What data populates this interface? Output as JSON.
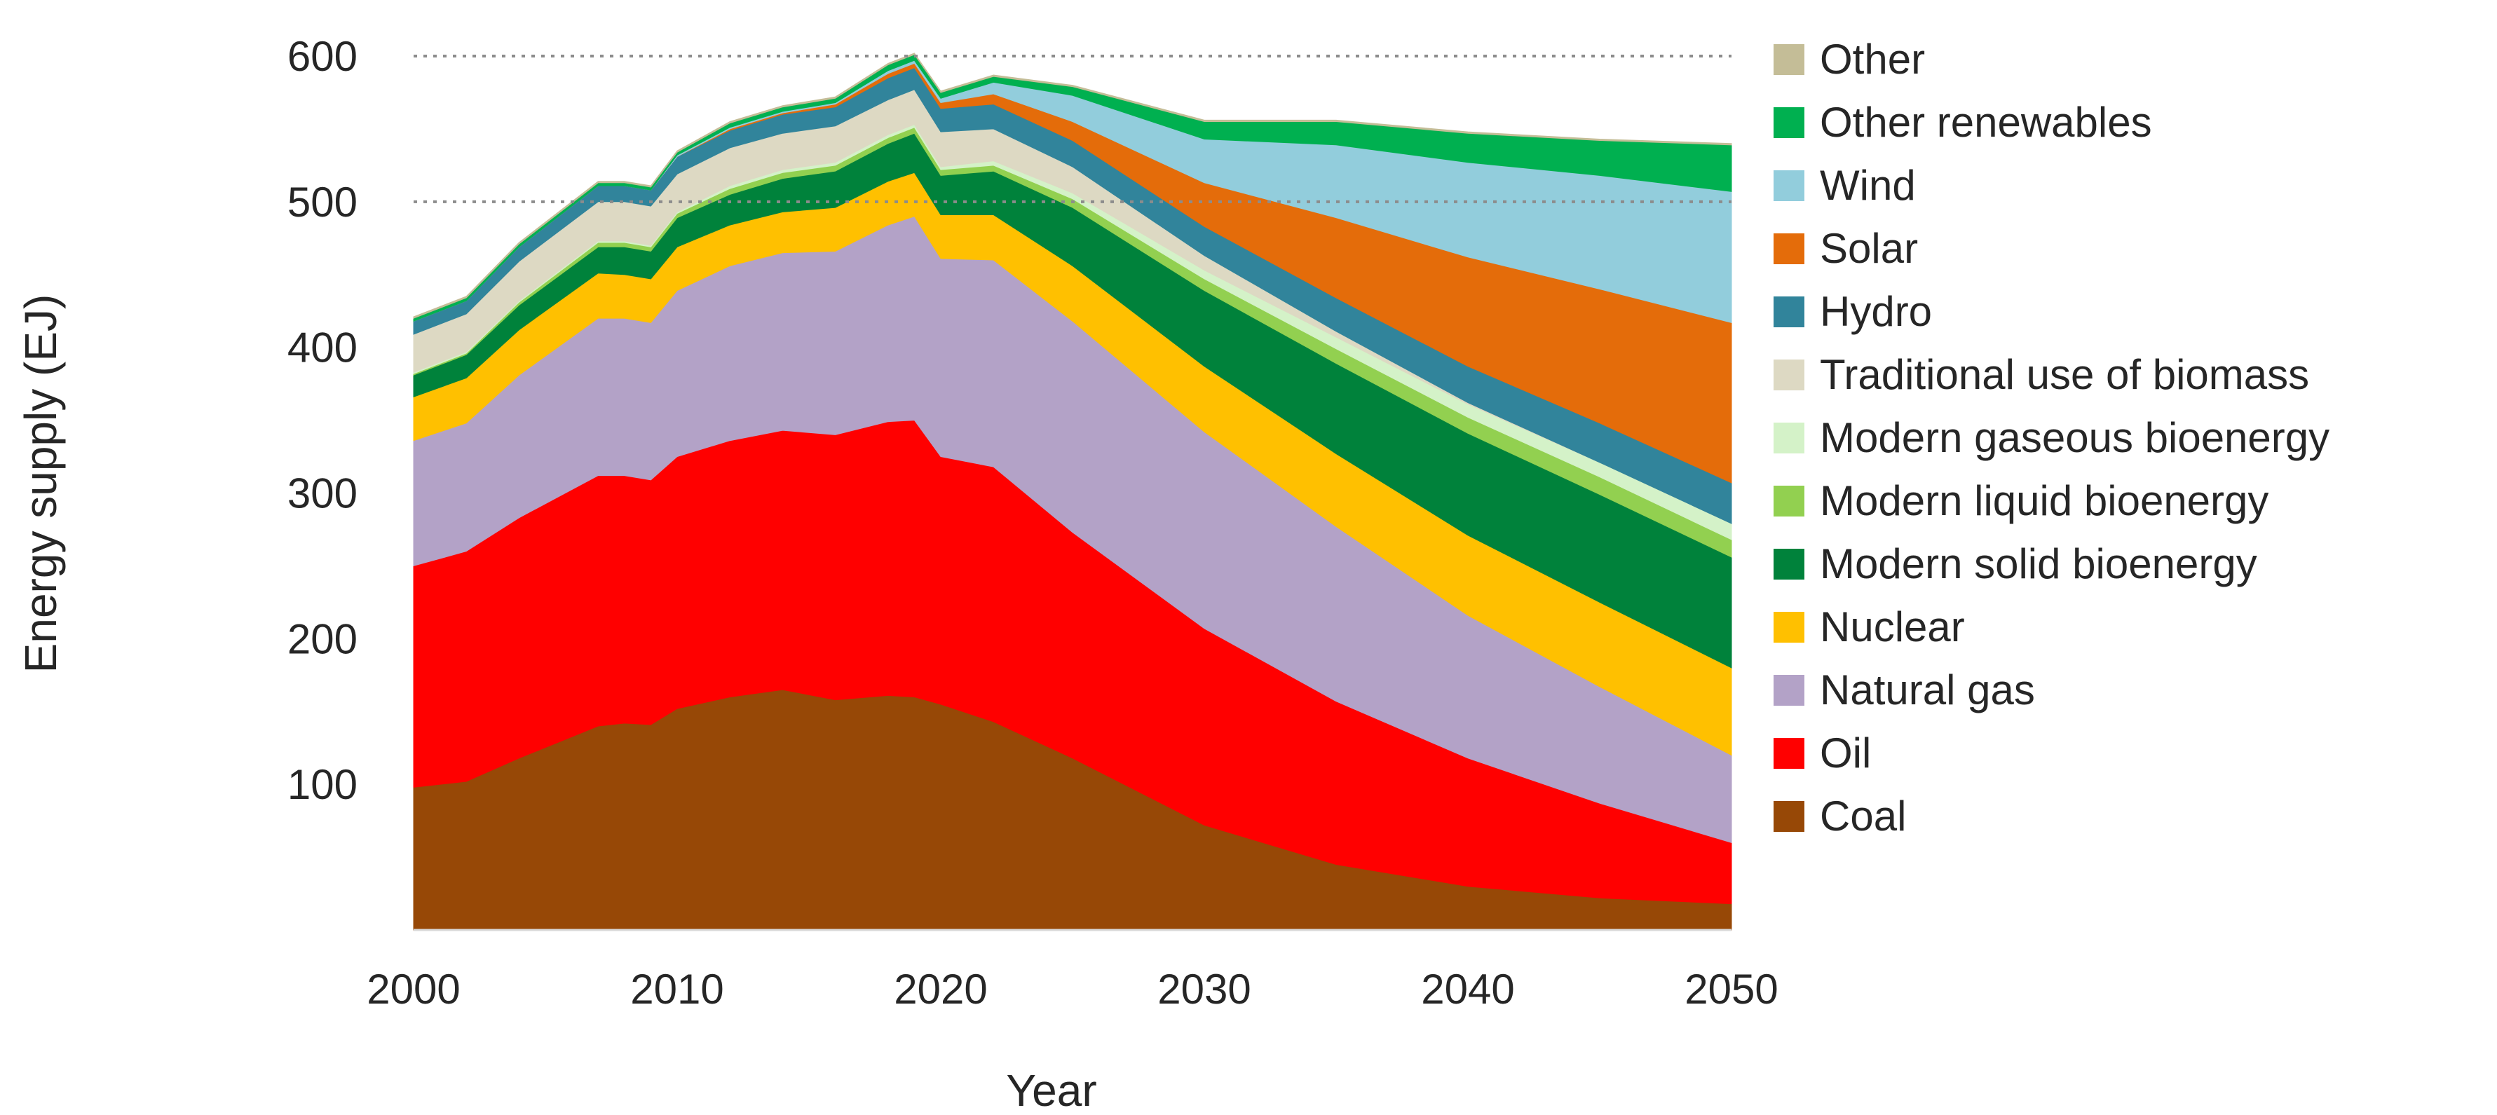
{
  "chart_data": {
    "type": "area",
    "stacked": true,
    "title": "",
    "xlabel": "Year",
    "ylabel": "Energy supply  (EJ)",
    "xlim": [
      2000,
      2050
    ],
    "ylim": [
      0,
      600
    ],
    "xticks": [
      "2000",
      "2010",
      "2020",
      "2030",
      "2040",
      "2050"
    ],
    "yticks": [
      "100",
      "200",
      "300",
      "400",
      "500",
      "600"
    ],
    "gridlines": [
      500,
      600
    ],
    "legend_position": "right",
    "x": [
      2000,
      2002,
      2004,
      2007,
      2008,
      2009,
      2010,
      2012,
      2014,
      2016,
      2018,
      2019,
      2020,
      2022,
      2025,
      2030,
      2035,
      2040,
      2045,
      2050
    ],
    "series": [
      {
        "name": "Coal",
        "color": "#974806",
        "values": [
          98,
          102,
          118,
          140,
          142,
          141,
          152,
          160,
          165,
          158,
          161,
          160,
          155,
          143,
          118,
          72,
          45,
          30,
          22,
          18
        ]
      },
      {
        "name": "Oil",
        "color": "#ff0000",
        "values": [
          152,
          158,
          165,
          172,
          170,
          168,
          173,
          176,
          178,
          182,
          188,
          190,
          170,
          175,
          155,
          135,
          112,
          88,
          65,
          42
        ]
      },
      {
        "name": "Natural gas",
        "color": "#b3a2c7",
        "values": [
          86,
          88,
          98,
          108,
          108,
          108,
          114,
          120,
          122,
          126,
          135,
          140,
          136,
          142,
          145,
          135,
          120,
          98,
          80,
          60
        ]
      },
      {
        "name": "Nuclear",
        "color": "#ffc000",
        "values": [
          30,
          31,
          31,
          31,
          30,
          30,
          30,
          28,
          28,
          30,
          30,
          30,
          30,
          31,
          38,
          45,
          50,
          55,
          58,
          60
        ]
      },
      {
        "name": "Modern solid bioenergy",
        "color": "#00823b",
        "values": [
          15,
          16,
          17,
          18,
          19,
          19,
          20,
          21,
          23,
          25,
          26,
          27,
          27,
          30,
          40,
          52,
          62,
          70,
          74,
          76
        ]
      },
      {
        "name": "Modern liquid bioenergy",
        "color": "#92d050",
        "values": [
          1,
          1,
          2,
          3,
          3,
          3,
          3,
          4,
          4,
          4,
          4,
          4,
          4,
          4,
          6,
          8,
          10,
          11,
          12,
          12
        ]
      },
      {
        "name": "Modern gaseous bioenergy",
        "color": "#d4f2c8",
        "values": [
          1,
          1,
          1,
          1,
          1,
          1,
          1,
          2,
          2,
          2,
          2,
          2,
          2,
          3,
          4,
          6,
          8,
          9,
          10,
          11
        ]
      },
      {
        "name": "Traditional use of biomass",
        "color": "#ddd9c3",
        "values": [
          26,
          26,
          27,
          27,
          27,
          27,
          26,
          26,
          25,
          25,
          24,
          24,
          24,
          22,
          18,
          10,
          4,
          1,
          0,
          0
        ]
      },
      {
        "name": "Hydro",
        "color": "#31849b",
        "values": [
          9,
          9,
          10,
          11,
          11,
          11,
          12,
          12,
          13,
          13,
          15,
          15,
          16,
          17,
          18,
          20,
          23,
          25,
          27,
          28
        ]
      },
      {
        "name": "Solar",
        "color": "#e46c0a",
        "values": [
          0,
          0,
          0,
          0,
          0,
          0,
          0,
          1,
          1,
          2,
          3,
          3,
          4,
          7,
          13,
          30,
          55,
          75,
          92,
          110
        ]
      },
      {
        "name": "Wind",
        "color": "#92cddc",
        "values": [
          0,
          0,
          0,
          0,
          0,
          0,
          1,
          1,
          1,
          1,
          2,
          2,
          3,
          8,
          18,
          30,
          50,
          65,
          78,
          90
        ]
      },
      {
        "name": "Other renewables",
        "color": "#00b050",
        "values": [
          2,
          2,
          2,
          2,
          2,
          2,
          2,
          3,
          3,
          3,
          4,
          4,
          4,
          4,
          6,
          12,
          16,
          20,
          24,
          32
        ]
      },
      {
        "name": "Other",
        "color": "#c4bd97",
        "values": [
          1,
          1,
          1,
          1,
          1,
          1,
          1,
          1,
          1,
          1,
          1,
          1,
          1,
          1,
          1,
          1,
          1,
          1,
          1,
          1
        ]
      }
    ]
  }
}
